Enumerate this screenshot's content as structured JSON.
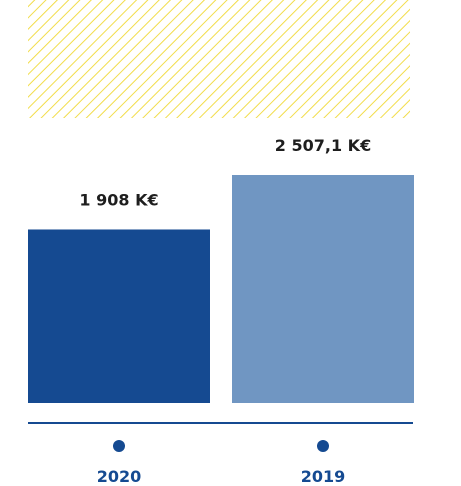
{
  "chart_data": {
    "type": "bar",
    "categories": [
      "2020",
      "2019"
    ],
    "values": [
      1908,
      2507.1
    ],
    "value_labels": [
      "1 908 K€",
      "2 507,1 K€"
    ],
    "colors": [
      "#154a91",
      "#7096c2"
    ]
  }
}
